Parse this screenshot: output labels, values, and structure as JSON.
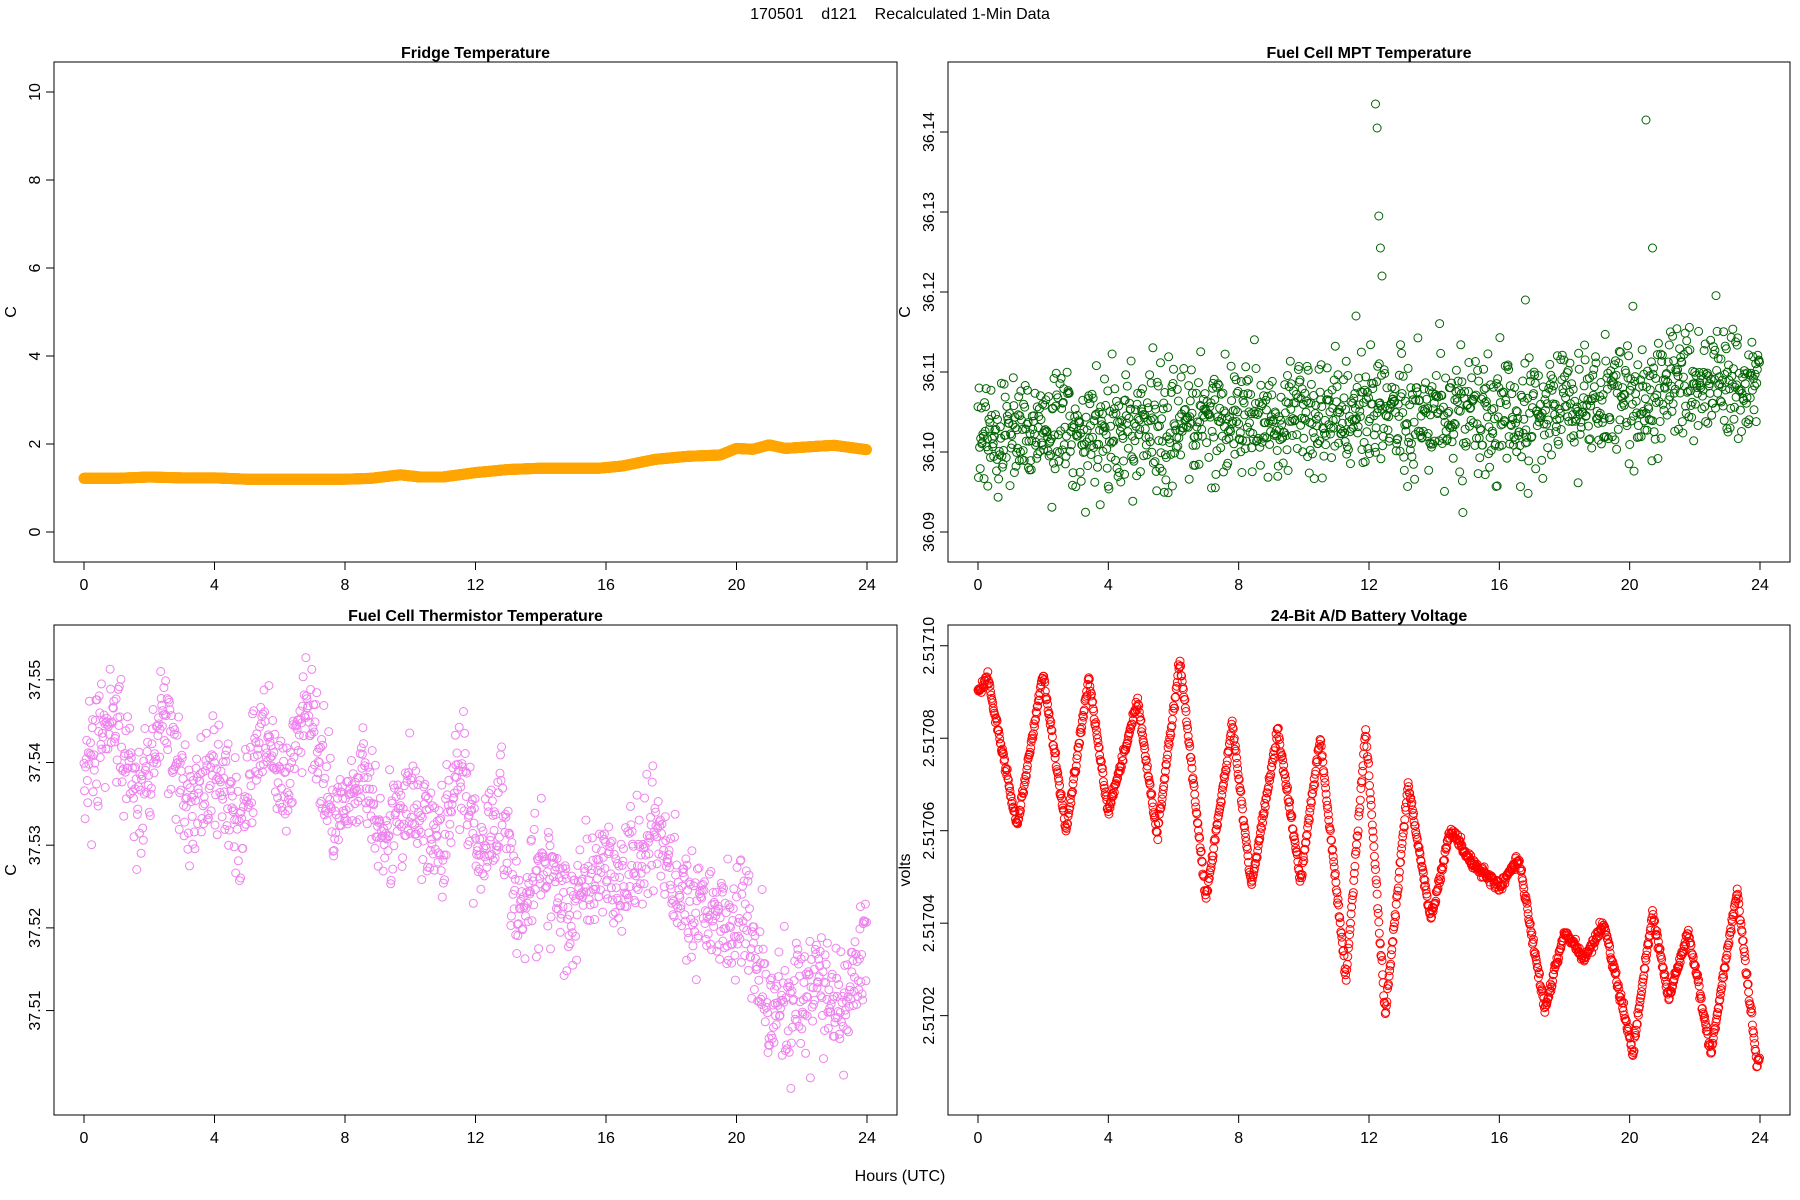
{
  "figure": {
    "title": "170501    d121    Recalculated 1-Min Data",
    "xlabel": "Hours (UTC)"
  },
  "chart_data": [
    {
      "type": "scatter",
      "title": "Fridge Temperature",
      "ylabel": "C",
      "color": "#FFA500",
      "marker": "filled",
      "xlim": [
        0,
        24
      ],
      "ylim": [
        0,
        10
      ],
      "xticks": [
        "0",
        "4",
        "8",
        "12",
        "16",
        "20",
        "24"
      ],
      "yticks": [
        "0",
        "2",
        "4",
        "6",
        "8",
        "10"
      ],
      "series": [
        {
          "name": "Fridge Temperature",
          "x": [
            0,
            1,
            2,
            3,
            4,
            5,
            6,
            7,
            8,
            8.8,
            9.7,
            10.3,
            11,
            12,
            13,
            14,
            15,
            15.8,
            16.5,
            17.5,
            18.5,
            19.5,
            20,
            20.5,
            21,
            21.5,
            22.5,
            23,
            24
          ],
          "y": [
            1.22,
            1.22,
            1.25,
            1.23,
            1.23,
            1.2,
            1.2,
            1.2,
            1.2,
            1.22,
            1.3,
            1.25,
            1.25,
            1.35,
            1.42,
            1.45,
            1.45,
            1.45,
            1.5,
            1.65,
            1.72,
            1.75,
            1.9,
            1.88,
            1.98,
            1.9,
            1.95,
            1.97,
            1.87
          ]
        }
      ]
    },
    {
      "type": "scatter",
      "title": "Fuel Cell MPT Temperature",
      "ylabel": "C",
      "color": "#006400",
      "marker": "open",
      "xlim": [
        0,
        24
      ],
      "ylim": [
        36.09,
        36.145
      ],
      "xticks": [
        "0",
        "4",
        "8",
        "12",
        "16",
        "20",
        "24"
      ],
      "yticks": [
        "36.09",
        "36.10",
        "36.11",
        "36.12",
        "36.13",
        "36.14"
      ],
      "series": [
        {
          "name": "Fuel Cell MPT Temperature",
          "trend_x": [
            0,
            4,
            8,
            12,
            16,
            19,
            20.5,
            22,
            23,
            24
          ],
          "trend_y": [
            36.1025,
            36.103,
            36.104,
            36.105,
            36.105,
            36.106,
            36.107,
            36.109,
            36.109,
            36.107
          ],
          "spread": 0.0035,
          "outliers_x": [
            12.2,
            12.25,
            12.3,
            12.35,
            12.4,
            20.5,
            20.7,
            16.8,
            11.6
          ],
          "outliers_y": [
            36.1435,
            36.1405,
            36.1295,
            36.1255,
            36.122,
            36.1415,
            36.1255,
            36.119,
            36.117
          ]
        }
      ]
    },
    {
      "type": "scatter",
      "title": "Fuel Cell Thermistor Temperature",
      "ylabel": "C",
      "color": "#EE82EE",
      "marker": "open",
      "xlim": [
        0,
        24
      ],
      "ylim": [
        37.501,
        37.553
      ],
      "xticks": [
        "0",
        "4",
        "8",
        "12",
        "16",
        "20",
        "24"
      ],
      "yticks": [
        "37.51",
        "37.52",
        "37.53",
        "37.54",
        "37.55"
      ],
      "series": [
        {
          "name": "Fuel Cell Thermistor Temperature",
          "trend_x": [
            0,
            0.8,
            1.7,
            2.5,
            3.2,
            4,
            4.8,
            5.5,
            6.2,
            6.8,
            7.6,
            8.5,
            9.2,
            10,
            11,
            11.5,
            12.2,
            12.8,
            13.3,
            14,
            15,
            15.8,
            16.5,
            17.5,
            18.3,
            19.5,
            20.3,
            21,
            22,
            22.5,
            23.2,
            24
          ],
          "trend_y": [
            37.537,
            37.546,
            37.535,
            37.546,
            37.534,
            37.539,
            37.533,
            37.545,
            37.535,
            37.549,
            37.532,
            37.539,
            37.532,
            37.535,
            37.53,
            37.54,
            37.528,
            37.536,
            37.52,
            37.528,
            37.524,
            37.527,
            37.526,
            37.532,
            37.523,
            37.521,
            37.52,
            37.51,
            37.511,
            37.514,
            37.509,
            37.519
          ],
          "spread": 0.0035
        }
      ]
    },
    {
      "type": "scatter",
      "title": "24-Bit A/D Battery Voltage",
      "ylabel": "volts",
      "color": "#FF0000",
      "marker": "open",
      "xlim": [
        0,
        24
      ],
      "ylim": [
        2.517005,
        2.517098
      ],
      "xticks": [
        "0",
        "4",
        "8",
        "12",
        "16",
        "20",
        "24"
      ],
      "yticks": [
        "2.51702",
        "2.51704",
        "2.51706",
        "2.51708",
        "2.51710"
      ],
      "series": [
        {
          "name": "24-Bit A/D Battery Voltage",
          "x": [
            0,
            0.3,
            1.2,
            2.0,
            2.7,
            3.4,
            4.0,
            4.9,
            5.5,
            6.2,
            7.0,
            7.8,
            8.4,
            9.2,
            9.9,
            10.5,
            11.3,
            11.9,
            12.5,
            13.2,
            13.9,
            14.5,
            15.2,
            16.0,
            16.6,
            17.4,
            18.0,
            18.6,
            19.2,
            20.1,
            20.7,
            21.2,
            21.8,
            22.5,
            23.3,
            23.9
          ],
          "y": [
            2.51709,
            2.517093,
            2.517061,
            2.517094,
            2.51706,
            2.517093,
            2.517064,
            2.517088,
            2.517059,
            2.517097,
            2.517045,
            2.517083,
            2.517048,
            2.517082,
            2.517049,
            2.51708,
            2.517028,
            2.517082,
            2.51702,
            2.51707,
            2.517041,
            2.51706,
            2.517053,
            2.517048,
            2.517054,
            2.517021,
            2.517038,
            2.517032,
            2.51704,
            2.517012,
            2.517042,
            2.517024,
            2.517038,
            2.517012,
            2.517047,
            2.51701
          ]
        }
      ]
    }
  ]
}
